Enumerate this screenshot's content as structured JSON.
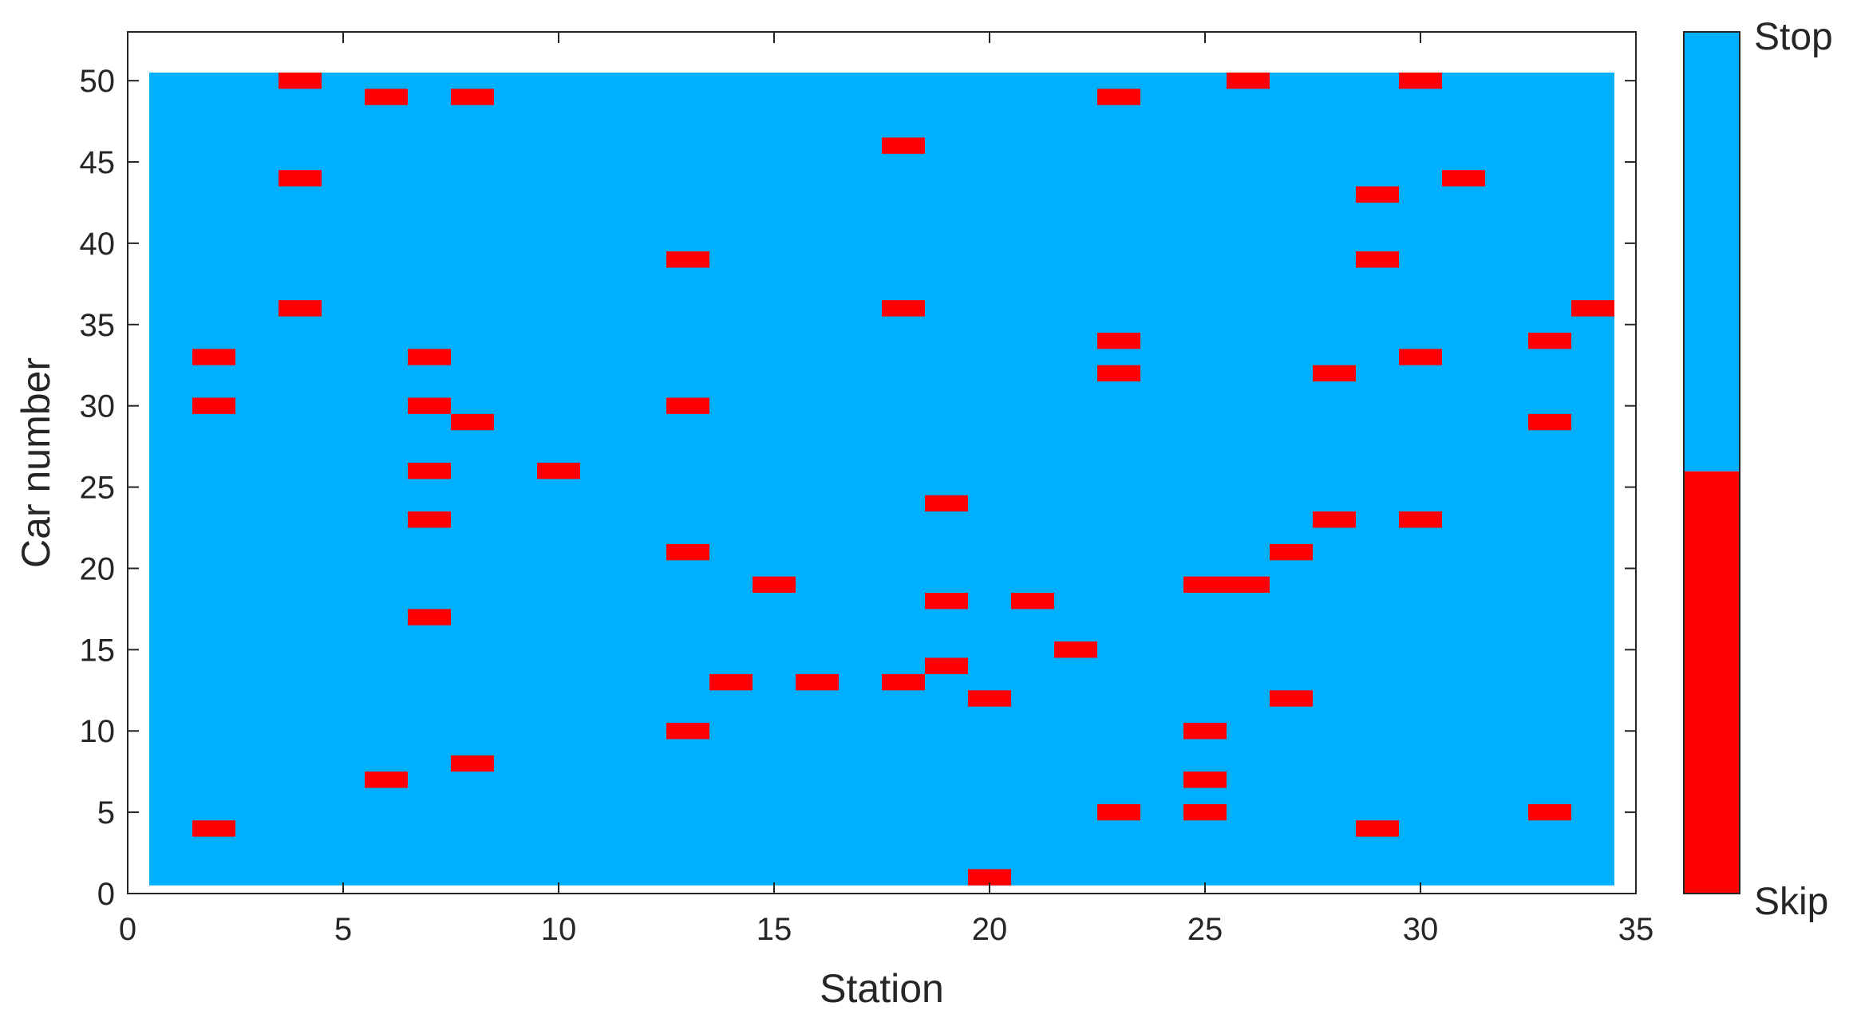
{
  "chart_data": {
    "type": "heatmap",
    "title": "",
    "xlabel": "Station",
    "ylabel": "Car number",
    "xlim": [
      0,
      35
    ],
    "ylim": [
      0,
      53
    ],
    "xticks": [
      0,
      5,
      10,
      15,
      20,
      25,
      30,
      35
    ],
    "yticks": [
      0,
      5,
      10,
      15,
      20,
      25,
      30,
      35,
      40,
      45,
      50
    ],
    "stations": [
      1,
      34
    ],
    "cars": [
      1,
      50
    ],
    "default_state": "Stop",
    "colorbar": {
      "labels": {
        "top": "Stop",
        "bottom": "Skip"
      },
      "skip_fraction": 0.49
    },
    "colors": {
      "stop": "#00b0ff",
      "skip": "#ff0000",
      "axis": "#262626"
    },
    "grid": false,
    "skip_cells": [
      [
        2,
        4
      ],
      [
        2,
        30
      ],
      [
        2,
        33
      ],
      [
        4,
        36
      ],
      [
        4,
        44
      ],
      [
        4,
        50
      ],
      [
        6,
        7
      ],
      [
        6,
        49
      ],
      [
        7,
        17
      ],
      [
        7,
        23
      ],
      [
        7,
        26
      ],
      [
        7,
        30
      ],
      [
        7,
        33
      ],
      [
        8,
        8
      ],
      [
        8,
        29
      ],
      [
        8,
        49
      ],
      [
        10,
        26
      ],
      [
        13,
        10
      ],
      [
        13,
        21
      ],
      [
        13,
        30
      ],
      [
        13,
        39
      ],
      [
        14,
        13
      ],
      [
        15,
        19
      ],
      [
        16,
        13
      ],
      [
        18,
        13
      ],
      [
        18,
        36
      ],
      [
        18,
        46
      ],
      [
        19,
        14
      ],
      [
        19,
        18
      ],
      [
        19,
        24
      ],
      [
        20,
        1
      ],
      [
        20,
        12
      ],
      [
        21,
        18
      ],
      [
        22,
        15
      ],
      [
        23,
        5
      ],
      [
        23,
        32
      ],
      [
        23,
        34
      ],
      [
        23,
        49
      ],
      [
        25,
        5
      ],
      [
        25,
        7
      ],
      [
        25,
        10
      ],
      [
        25,
        19
      ],
      [
        26,
        19
      ],
      [
        26,
        50
      ],
      [
        27,
        12
      ],
      [
        27,
        21
      ],
      [
        28,
        23
      ],
      [
        28,
        32
      ],
      [
        29,
        4
      ],
      [
        29,
        39
      ],
      [
        29,
        43
      ],
      [
        30,
        23
      ],
      [
        30,
        33
      ],
      [
        30,
        50
      ],
      [
        31,
        44
      ],
      [
        33,
        5
      ],
      [
        33,
        29
      ],
      [
        33,
        34
      ],
      [
        34,
        36
      ]
    ]
  }
}
